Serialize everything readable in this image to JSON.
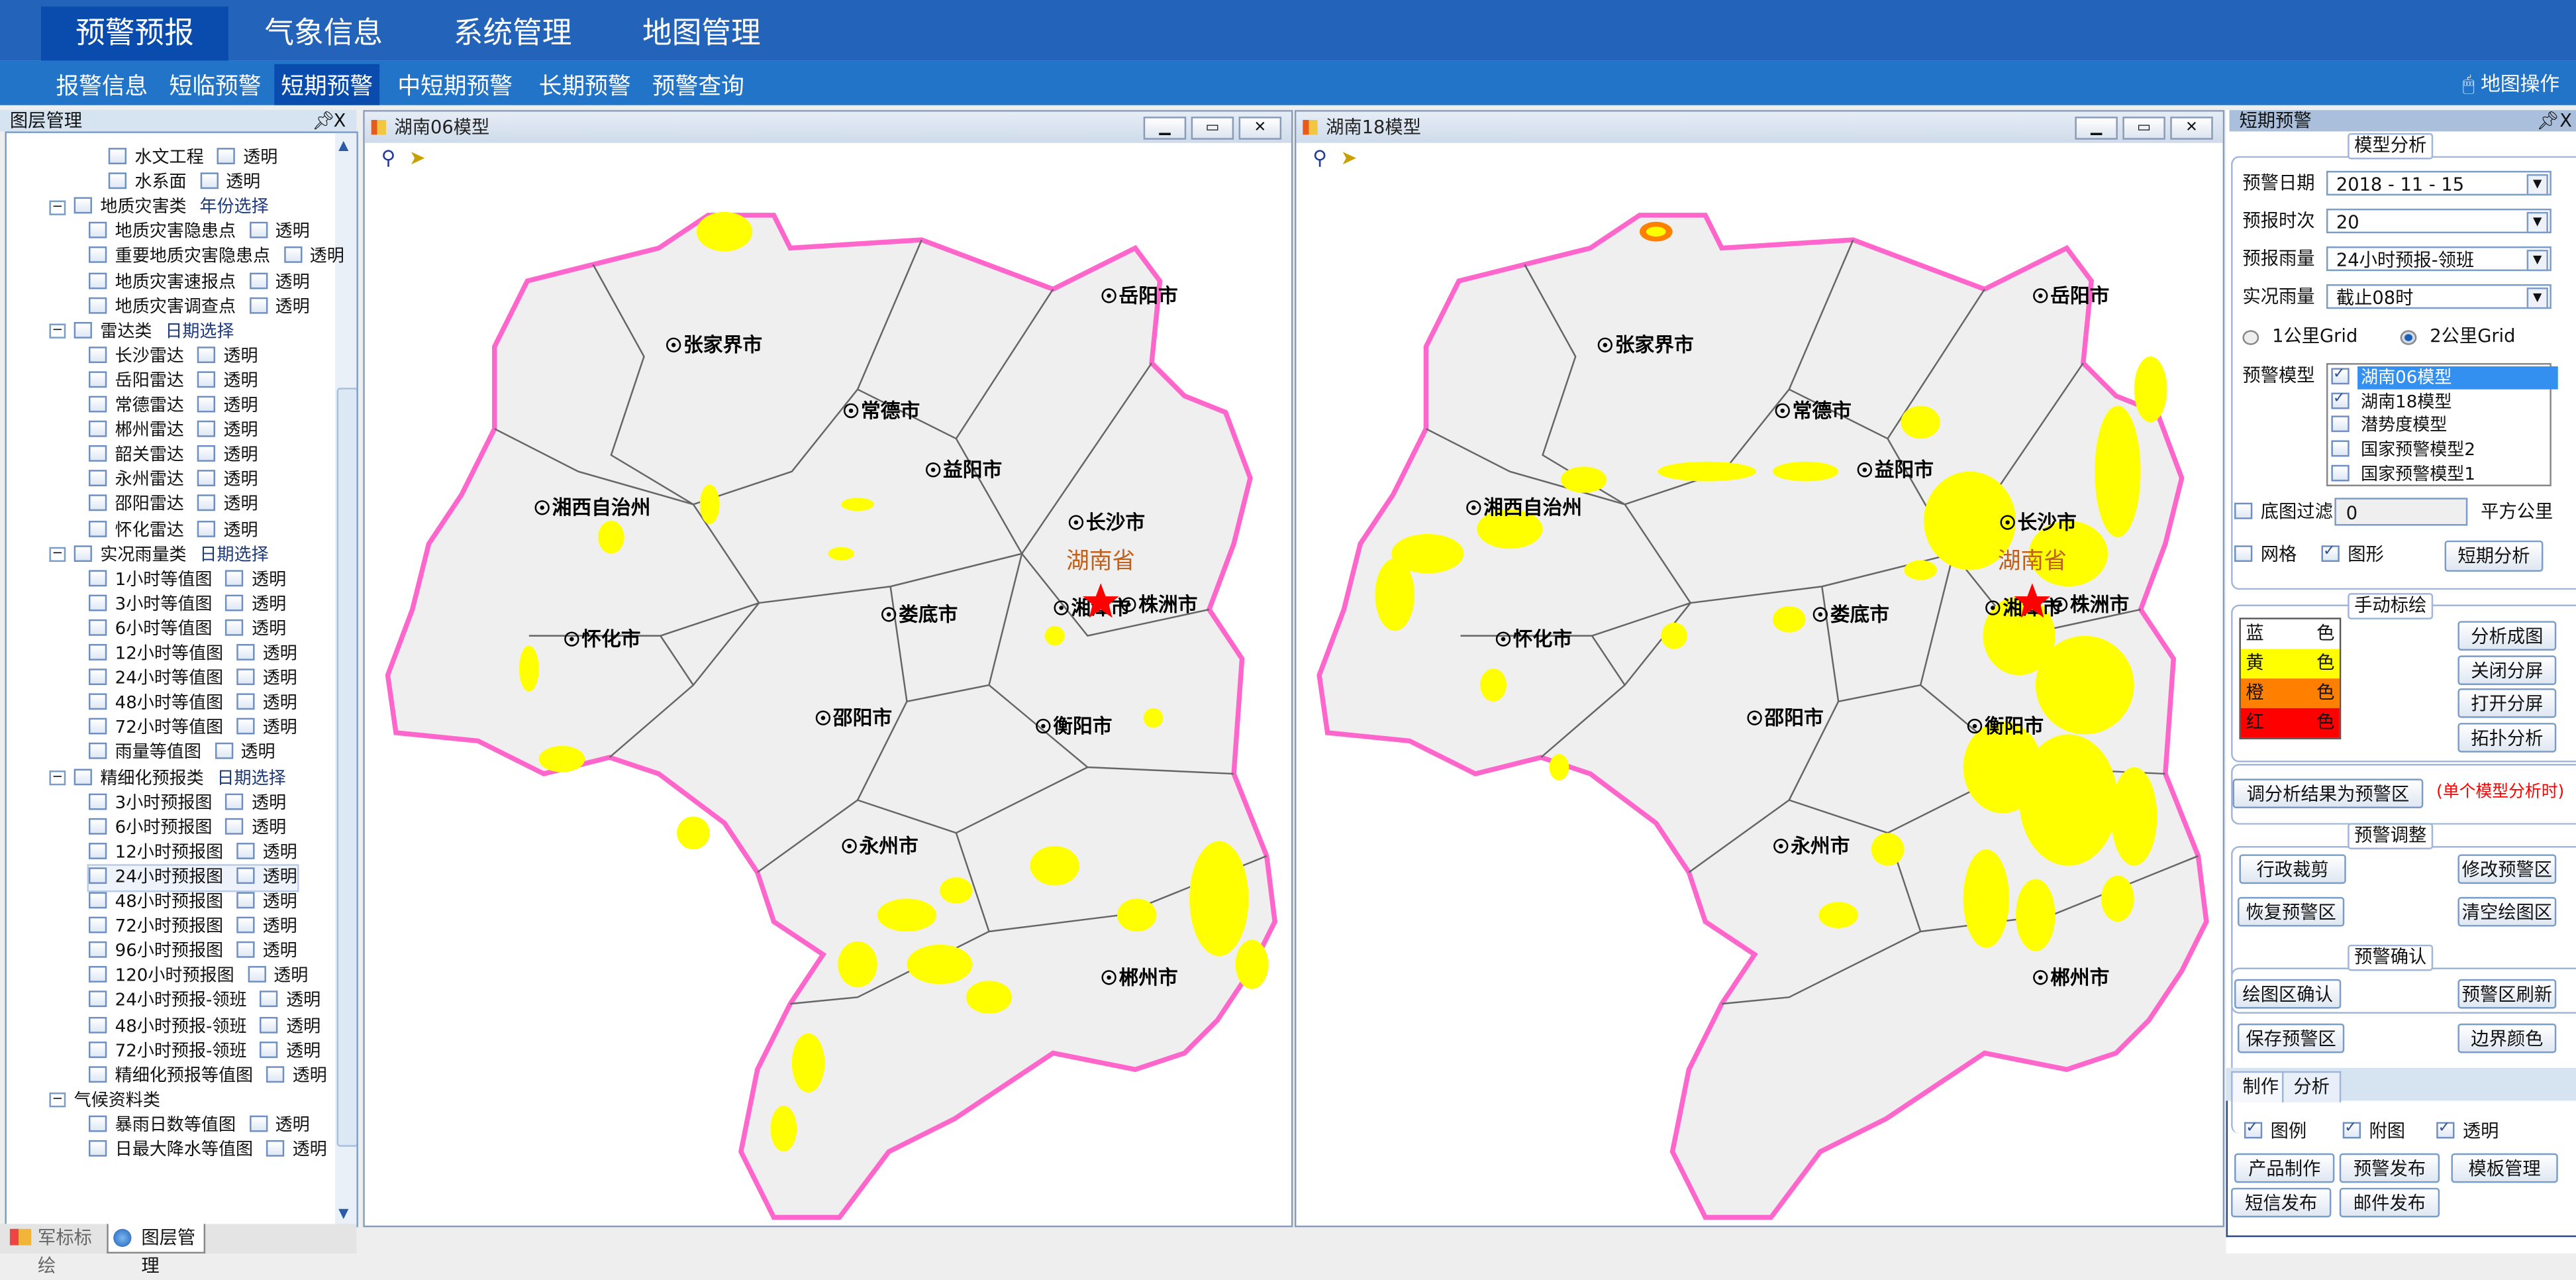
{
  "topnav": {
    "items": [
      "预警预报",
      "气象信息",
      "系统管理",
      "地图管理"
    ],
    "active": 0
  },
  "subnav": {
    "items": [
      "报警信息",
      "短临预警",
      "短期预警",
      "中短期预警",
      "长期预警",
      "预警查询"
    ],
    "active": 2,
    "map_operation": "地图操作"
  },
  "layer_panel": {
    "title": "图层管理",
    "pin": "ꟸ",
    "close": "X",
    "transparent_label": "透明",
    "rows": [
      {
        "label": "水文工程",
        "level": 3,
        "transparent": true
      },
      {
        "label": "水系面",
        "level": 3,
        "transparent": true
      },
      {
        "label": "地质灾害类",
        "level": 1,
        "group": true,
        "extra": "年份选择"
      },
      {
        "label": "地质灾害隐患点",
        "level": 2,
        "transparent": true
      },
      {
        "label": "重要地质灾害隐患点",
        "level": 2,
        "transparent": true
      },
      {
        "label": "地质灾害速报点",
        "level": 2,
        "transparent": true
      },
      {
        "label": "地质灾害调查点",
        "level": 2,
        "transparent": true
      },
      {
        "label": "雷达类",
        "level": 1,
        "group": true,
        "extra": "日期选择"
      },
      {
        "label": "长沙雷达",
        "level": 2,
        "transparent": true
      },
      {
        "label": "岳阳雷达",
        "level": 2,
        "transparent": true
      },
      {
        "label": "常德雷达",
        "level": 2,
        "transparent": true
      },
      {
        "label": "郴州雷达",
        "level": 2,
        "transparent": true
      },
      {
        "label": "韶关雷达",
        "level": 2,
        "transparent": true
      },
      {
        "label": "永州雷达",
        "level": 2,
        "transparent": true
      },
      {
        "label": "邵阳雷达",
        "level": 2,
        "transparent": true
      },
      {
        "label": "怀化雷达",
        "level": 2,
        "transparent": true
      },
      {
        "label": "实况雨量类",
        "level": 1,
        "group": true,
        "extra": "日期选择"
      },
      {
        "label": "1小时等值图",
        "level": 2,
        "transparent": true
      },
      {
        "label": "3小时等值图",
        "level": 2,
        "transparent": true
      },
      {
        "label": "6小时等值图",
        "level": 2,
        "transparent": true
      },
      {
        "label": "12小时等值图",
        "level": 2,
        "transparent": true
      },
      {
        "label": "24小时等值图",
        "level": 2,
        "transparent": true
      },
      {
        "label": "48小时等值图",
        "level": 2,
        "transparent": true
      },
      {
        "label": "72小时等值图",
        "level": 2,
        "transparent": true
      },
      {
        "label": "雨量等值图",
        "level": 2,
        "transparent": true
      },
      {
        "label": "精细化预报类",
        "level": 1,
        "group": true,
        "extra": "日期选择"
      },
      {
        "label": "3小时预报图",
        "level": 2,
        "transparent": true
      },
      {
        "label": "6小时预报图",
        "level": 2,
        "transparent": true
      },
      {
        "label": "12小时预报图",
        "level": 2,
        "transparent": true
      },
      {
        "label": "24小时预报图",
        "level": 2,
        "transparent": true,
        "selected": true
      },
      {
        "label": "48小时预报图",
        "level": 2,
        "transparent": true
      },
      {
        "label": "72小时预报图",
        "level": 2,
        "transparent": true
      },
      {
        "label": "96小时预报图",
        "level": 2,
        "transparent": true
      },
      {
        "label": "120小时预报图",
        "level": 2,
        "transparent": true
      },
      {
        "label": "24小时预报-领班",
        "level": 2,
        "transparent": true
      },
      {
        "label": "48小时预报-领班",
        "level": 2,
        "transparent": true
      },
      {
        "label": "72小时预报-领班",
        "level": 2,
        "transparent": true
      },
      {
        "label": "精细化预报等值图",
        "level": 2,
        "transparent": true
      },
      {
        "label": "气候资料类",
        "level": 1,
        "group": true,
        "nocheck": true
      },
      {
        "label": "暴雨日数等值图",
        "level": 2,
        "transparent": true
      },
      {
        "label": "日最大降水等值图",
        "level": 2,
        "transparent": true
      }
    ]
  },
  "bottom_tabs": {
    "items": [
      "军标标绘",
      "图层管理"
    ],
    "active": 1
  },
  "map_windows": [
    {
      "title": "湖南06模型",
      "province_label": "湖南省"
    },
    {
      "title": "湖南18模型",
      "province_label": "湖南省"
    }
  ],
  "cities": [
    "岳阳市",
    "张家界市",
    "常德市",
    "益阳市",
    "湘西自治州",
    "长沙市",
    "湘潭市",
    "株洲市",
    "娄底市",
    "怀化市",
    "衡阳市",
    "邵阳市",
    "永州市",
    "郴州市"
  ],
  "map_colors": {
    "land": "#efefef",
    "boundary": "#ff66cc",
    "county": "#666666",
    "warning_yellow": "#ffff00",
    "warning_orange": "#ff8000",
    "warning_red": "#ff0000",
    "label_province": "#c0601a"
  },
  "right_panel": {
    "title": "短期预警",
    "model_analysis": {
      "legend": "模型分析",
      "warning_date_label": "预警日期",
      "warning_date": "2018 - 11 - 15",
      "forecast_time_label": "预报时次",
      "forecast_time": "20",
      "forecast_rain_label": "预报雨量",
      "forecast_rain": "24小时预报-领班",
      "observed_rain_label": "实况雨量",
      "observed_rain": "截止08时",
      "grid_1km": "1公里Grid",
      "grid_2km": "2公里Grid",
      "grid_selected": "2公里Grid",
      "model_label": "预警模型",
      "models": [
        {
          "label": "湖南06模型",
          "checked": true,
          "highlighted": true
        },
        {
          "label": "湖南18模型",
          "checked": true
        },
        {
          "label": "潜势度模型",
          "checked": false
        },
        {
          "label": "国家预警模型2",
          "checked": false
        },
        {
          "label": "国家预警模型1",
          "checked": false
        }
      ],
      "filter_label": "底图过滤",
      "filter_checked": false,
      "filter_value": "0",
      "filter_unit": "平方公里",
      "grid_label": "网格",
      "grid_checked": false,
      "shape_label": "图形",
      "shape_checked": true,
      "analyze_button": "短期分析"
    },
    "manual_draw": {
      "legend": "手动标绘",
      "colors": [
        {
          "name": "蓝",
          "suffix": "色",
          "color": "#ffffff"
        },
        {
          "name": "黄",
          "suffix": "色",
          "color": "#ffff00"
        },
        {
          "name": "橙",
          "suffix": "色",
          "color": "#ff8000"
        },
        {
          "name": "红",
          "suffix": "色",
          "color": "#ff0000"
        }
      ],
      "buttons": [
        "分析成图",
        "关闭分屏",
        "打开分屏",
        "拓扑分析"
      ]
    },
    "adjust_result_button": "调分析结果为预警区",
    "adjust_note": "(单个模型分析时)",
    "adjust_note_color": "#ff0000",
    "warning_adjust": {
      "legend": "预警调整",
      "buttons": [
        "行政裁剪",
        "修改预警区",
        "恢复预警区",
        "清空绘图区"
      ]
    },
    "warning_confirm": {
      "legend": "预警确认",
      "buttons": [
        "绘图区确认",
        "预警区刷新",
        "保存预警区",
        "边界颜色"
      ]
    },
    "tabs": {
      "items": [
        "制作",
        "分析"
      ],
      "active": 0
    },
    "produce": {
      "checks": [
        {
          "label": "图例",
          "checked": true
        },
        {
          "label": "附图",
          "checked": true
        },
        {
          "label": "透明",
          "checked": true
        }
      ],
      "buttons": [
        "产品制作",
        "预警发布",
        "模板管理",
        "短信发布",
        "邮件发布"
      ]
    }
  }
}
